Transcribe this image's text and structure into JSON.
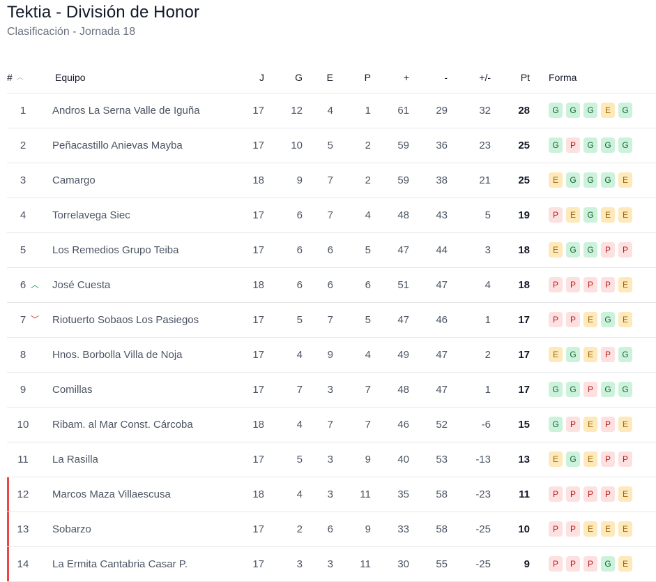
{
  "title": "Tektia - División de Honor",
  "subtitle": "Clasificación - Jornada 18",
  "headers": {
    "pos": "#",
    "team": "Equipo",
    "j": "J",
    "g": "G",
    "e": "E",
    "p": "P",
    "gf": "+",
    "ga": "-",
    "gd": "+/-",
    "pt": "Pt",
    "form": "Forma"
  },
  "colors": {
    "win": "#ccf2dc",
    "draw": "#fde9b9",
    "loss": "#fde0e0",
    "relegation": "#ef4444",
    "up": "#16a34a",
    "down": "#dc2626"
  },
  "rows": [
    {
      "pos": "1",
      "team": "Andros La Serna Valle de Iguña",
      "j": "17",
      "g": "12",
      "e": "4",
      "p": "1",
      "gf": "61",
      "ga": "29",
      "gd": "32",
      "pt": "28",
      "form": [
        "G",
        "G",
        "G",
        "E",
        "G"
      ],
      "trend": "",
      "relegation": false
    },
    {
      "pos": "2",
      "team": "Peñacastillo Anievas Mayba",
      "j": "17",
      "g": "10",
      "e": "5",
      "p": "2",
      "gf": "59",
      "ga": "36",
      "gd": "23",
      "pt": "25",
      "form": [
        "G",
        "P",
        "G",
        "G",
        "G"
      ],
      "trend": "",
      "relegation": false
    },
    {
      "pos": "3",
      "team": "Camargo",
      "j": "18",
      "g": "9",
      "e": "7",
      "p": "2",
      "gf": "59",
      "ga": "38",
      "gd": "21",
      "pt": "25",
      "form": [
        "E",
        "G",
        "G",
        "G",
        "E"
      ],
      "trend": "",
      "relegation": false
    },
    {
      "pos": "4",
      "team": "Torrelavega Siec",
      "j": "17",
      "g": "6",
      "e": "7",
      "p": "4",
      "gf": "48",
      "ga": "43",
      "gd": "5",
      "pt": "19",
      "form": [
        "P",
        "E",
        "G",
        "E",
        "E"
      ],
      "trend": "",
      "relegation": false
    },
    {
      "pos": "5",
      "team": "Los Remedios Grupo Teiba",
      "j": "17",
      "g": "6",
      "e": "6",
      "p": "5",
      "gf": "47",
      "ga": "44",
      "gd": "3",
      "pt": "18",
      "form": [
        "E",
        "G",
        "G",
        "P",
        "P"
      ],
      "trend": "",
      "relegation": false
    },
    {
      "pos": "6",
      "team": "José Cuesta",
      "j": "18",
      "g": "6",
      "e": "6",
      "p": "6",
      "gf": "51",
      "ga": "47",
      "gd": "4",
      "pt": "18",
      "form": [
        "P",
        "P",
        "P",
        "P",
        "E"
      ],
      "trend": "up",
      "relegation": false
    },
    {
      "pos": "7",
      "team": "Riotuerto Sobaos Los Pasiegos",
      "j": "17",
      "g": "5",
      "e": "7",
      "p": "5",
      "gf": "47",
      "ga": "46",
      "gd": "1",
      "pt": "17",
      "form": [
        "P",
        "P",
        "E",
        "G",
        "E"
      ],
      "trend": "down",
      "relegation": false
    },
    {
      "pos": "8",
      "team": "Hnos. Borbolla Villa de Noja",
      "j": "17",
      "g": "4",
      "e": "9",
      "p": "4",
      "gf": "49",
      "ga": "47",
      "gd": "2",
      "pt": "17",
      "form": [
        "E",
        "G",
        "E",
        "P",
        "G"
      ],
      "trend": "",
      "relegation": false
    },
    {
      "pos": "9",
      "team": "Comillas",
      "j": "17",
      "g": "7",
      "e": "3",
      "p": "7",
      "gf": "48",
      "ga": "47",
      "gd": "1",
      "pt": "17",
      "form": [
        "G",
        "G",
        "P",
        "G",
        "G"
      ],
      "trend": "",
      "relegation": false
    },
    {
      "pos": "10",
      "team": "Ribam. al Mar Const. Cárcoba",
      "j": "18",
      "g": "4",
      "e": "7",
      "p": "7",
      "gf": "46",
      "ga": "52",
      "gd": "-6",
      "pt": "15",
      "form": [
        "G",
        "P",
        "E",
        "P",
        "E"
      ],
      "trend": "",
      "relegation": false
    },
    {
      "pos": "11",
      "team": "La Rasilla",
      "j": "17",
      "g": "5",
      "e": "3",
      "p": "9",
      "gf": "40",
      "ga": "53",
      "gd": "-13",
      "pt": "13",
      "form": [
        "E",
        "G",
        "E",
        "P",
        "P"
      ],
      "trend": "",
      "relegation": false
    },
    {
      "pos": "12",
      "team": "Marcos Maza Villaescusa",
      "j": "18",
      "g": "4",
      "e": "3",
      "p": "11",
      "gf": "35",
      "ga": "58",
      "gd": "-23",
      "pt": "11",
      "form": [
        "P",
        "P",
        "P",
        "P",
        "E"
      ],
      "trend": "",
      "relegation": true
    },
    {
      "pos": "13",
      "team": "Sobarzo",
      "j": "17",
      "g": "2",
      "e": "6",
      "p": "9",
      "gf": "33",
      "ga": "58",
      "gd": "-25",
      "pt": "10",
      "form": [
        "P",
        "P",
        "E",
        "E",
        "E"
      ],
      "trend": "",
      "relegation": true
    },
    {
      "pos": "14",
      "team": "La Ermita Cantabria Casar P.",
      "j": "17",
      "g": "3",
      "e": "3",
      "p": "11",
      "gf": "30",
      "ga": "55",
      "gd": "-25",
      "pt": "9",
      "form": [
        "P",
        "P",
        "P",
        "G",
        "E"
      ],
      "trend": "",
      "relegation": true
    }
  ]
}
